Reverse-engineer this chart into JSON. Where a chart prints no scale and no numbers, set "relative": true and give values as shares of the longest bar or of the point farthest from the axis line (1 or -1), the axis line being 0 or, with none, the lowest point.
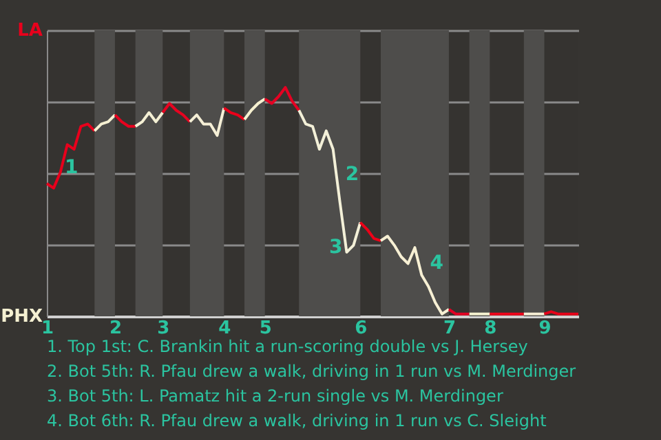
{
  "chart_data": {
    "type": "line",
    "relative": true,
    "grid": "y",
    "legend": false,
    "marker": "none",
    "line_style": "solid",
    "categories": [
      "1",
      null,
      null,
      null,
      null,
      null,
      null,
      null,
      null,
      null,
      "2",
      null,
      null,
      null,
      null,
      null,
      null,
      "3",
      null,
      null,
      null,
      null,
      null,
      null,
      null,
      null,
      "4",
      null,
      null,
      null,
      null,
      null,
      "5",
      null,
      null,
      null,
      null,
      null,
      null,
      null,
      null,
      null,
      null,
      null,
      null,
      null,
      "6",
      null,
      null,
      null,
      null,
      null,
      null,
      null,
      null,
      null,
      null,
      null,
      null,
      "7",
      null,
      null,
      null,
      null,
      null,
      "8",
      null,
      null,
      null,
      null,
      null,
      null,
      null,
      "9",
      null,
      null,
      null,
      null,
      null
    ],
    "series": [
      {
        "color": "#e8001c",
        "values": [
          0.58,
          0.56,
          0.63,
          0.75,
          0.73,
          0.83,
          0.84,
          0.81,
          null,
          null,
          null,
          null,
          null,
          null,
          null,
          null,
          null,
          null,
          null,
          null,
          null,
          null,
          null,
          null,
          null,
          null,
          null,
          null,
          null,
          null,
          null,
          null,
          null,
          null,
          null,
          null,
          null,
          null,
          null,
          null,
          null,
          null,
          null,
          null,
          null,
          null,
          null,
          null,
          null,
          null,
          null,
          null,
          null,
          null,
          null,
          null,
          null,
          null,
          null,
          null,
          null,
          null,
          null,
          null,
          null,
          null,
          null,
          null,
          null,
          null,
          null,
          null,
          null,
          null,
          null,
          null,
          null,
          null,
          null
        ]
      },
      {
        "color": "#f5f0d2",
        "values": [
          null,
          null,
          null,
          null,
          null,
          null,
          null,
          0.81,
          0.84,
          0.85,
          0.88,
          null,
          null,
          null,
          null,
          null,
          null,
          null,
          null,
          null,
          null,
          null,
          null,
          null,
          null,
          null,
          null,
          null,
          null,
          null,
          null,
          null,
          null,
          null,
          null,
          null,
          null,
          null,
          null,
          null,
          null,
          null,
          null,
          null,
          null,
          null,
          null,
          null,
          null,
          null,
          null,
          null,
          null,
          null,
          null,
          null,
          null,
          null,
          null,
          null,
          null,
          null,
          null,
          null,
          null,
          null,
          null,
          null,
          null,
          null,
          null,
          null,
          null,
          null,
          null,
          null,
          null,
          null,
          null
        ]
      },
      {
        "color": "#e8021e",
        "values": [
          null,
          null,
          null,
          null,
          null,
          null,
          null,
          null,
          null,
          null,
          0.88,
          0.85,
          0.83,
          0.83,
          null,
          null,
          null,
          null,
          null,
          null,
          null,
          null,
          null,
          null,
          null,
          null,
          null,
          null,
          null,
          null,
          null,
          null,
          null,
          null,
          null,
          null,
          null,
          null,
          null,
          null,
          null,
          null,
          null,
          null,
          null,
          null,
          null,
          null,
          null,
          null,
          null,
          null,
          null,
          null,
          null,
          null,
          null,
          null,
          null,
          null,
          null,
          null,
          null,
          null,
          null,
          null,
          null,
          null,
          null,
          null,
          null,
          null,
          null,
          null,
          null,
          null,
          null,
          null,
          null
        ]
      },
      {
        "color": "#f4f0d4",
        "values": [
          null,
          null,
          null,
          null,
          null,
          null,
          null,
          null,
          null,
          null,
          null,
          null,
          null,
          0.83,
          0.85,
          0.89,
          0.85,
          0.89,
          null,
          null,
          null,
          null,
          null,
          null,
          null,
          null,
          null,
          null,
          null,
          null,
          null,
          null,
          null,
          null,
          null,
          null,
          null,
          null,
          null,
          null,
          null,
          null,
          null,
          null,
          null,
          null,
          null,
          null,
          null,
          null,
          null,
          null,
          null,
          null,
          null,
          null,
          null,
          null,
          null,
          null,
          null,
          null,
          null,
          null,
          null,
          null,
          null,
          null,
          null,
          null,
          null,
          null,
          null,
          null,
          null,
          null,
          null,
          null,
          null
        ]
      },
      {
        "color": "#e60420",
        "values": [
          null,
          null,
          null,
          null,
          null,
          null,
          null,
          null,
          null,
          null,
          null,
          null,
          null,
          null,
          null,
          null,
          null,
          0.89,
          0.93,
          0.9,
          0.88,
          0.85,
          null,
          null,
          null,
          null,
          null,
          null,
          null,
          null,
          null,
          null,
          null,
          null,
          null,
          null,
          null,
          null,
          null,
          null,
          null,
          null,
          null,
          null,
          null,
          null,
          null,
          null,
          null,
          null,
          null,
          null,
          null,
          null,
          null,
          null,
          null,
          null,
          null,
          null,
          null,
          null,
          null,
          null,
          null,
          null,
          null,
          null,
          null,
          null,
          null,
          null,
          null,
          null,
          null,
          null,
          null,
          null,
          null
        ]
      },
      {
        "color": "#f5efd6",
        "values": [
          null,
          null,
          null,
          null,
          null,
          null,
          null,
          null,
          null,
          null,
          null,
          null,
          null,
          null,
          null,
          null,
          null,
          null,
          null,
          null,
          null,
          0.85,
          0.88,
          0.84,
          0.84,
          0.79,
          0.91,
          null,
          null,
          null,
          null,
          null,
          null,
          null,
          null,
          null,
          null,
          null,
          null,
          null,
          null,
          null,
          null,
          null,
          null,
          null,
          null,
          null,
          null,
          null,
          null,
          null,
          null,
          null,
          null,
          null,
          null,
          null,
          null,
          null,
          null,
          null,
          null,
          null,
          null,
          null,
          null,
          null,
          null,
          null,
          null,
          null,
          null,
          null,
          null,
          null,
          null,
          null,
          null
        ]
      },
      {
        "color": "#ea001a",
        "values": [
          null,
          null,
          null,
          null,
          null,
          null,
          null,
          null,
          null,
          null,
          null,
          null,
          null,
          null,
          null,
          null,
          null,
          null,
          null,
          null,
          null,
          null,
          null,
          null,
          null,
          null,
          0.91,
          0.89,
          0.88,
          0.86,
          null,
          null,
          null,
          null,
          null,
          null,
          null,
          null,
          null,
          null,
          null,
          null,
          null,
          null,
          null,
          null,
          null,
          null,
          null,
          null,
          null,
          null,
          null,
          null,
          null,
          null,
          null,
          null,
          null,
          null,
          null,
          null,
          null,
          null,
          null,
          null,
          null,
          null,
          null,
          null,
          null,
          null,
          null,
          null,
          null,
          null,
          null,
          null,
          null
        ]
      },
      {
        "color": "#f6f1d0",
        "values": [
          null,
          null,
          null,
          null,
          null,
          null,
          null,
          null,
          null,
          null,
          null,
          null,
          null,
          null,
          null,
          null,
          null,
          null,
          null,
          null,
          null,
          null,
          null,
          null,
          null,
          null,
          null,
          null,
          null,
          0.86,
          0.9,
          0.93,
          0.95,
          null,
          null,
          null,
          null,
          null,
          null,
          null,
          null,
          null,
          null,
          null,
          null,
          null,
          null,
          null,
          null,
          null,
          null,
          null,
          null,
          null,
          null,
          null,
          null,
          null,
          null,
          null,
          null,
          null,
          null,
          null,
          null,
          null,
          null,
          null,
          null,
          null,
          null,
          null,
          null,
          null,
          null,
          null,
          null,
          null,
          null
        ]
      },
      {
        "color": "#e40222",
        "values": [
          null,
          null,
          null,
          null,
          null,
          null,
          null,
          null,
          null,
          null,
          null,
          null,
          null,
          null,
          null,
          null,
          null,
          null,
          null,
          null,
          null,
          null,
          null,
          null,
          null,
          null,
          null,
          null,
          null,
          null,
          null,
          null,
          0.95,
          0.93,
          0.96,
          1,
          0.94,
          0.9,
          null,
          null,
          null,
          null,
          null,
          null,
          null,
          null,
          null,
          null,
          null,
          null,
          null,
          null,
          null,
          null,
          null,
          null,
          null,
          null,
          null,
          null,
          null,
          null,
          null,
          null,
          null,
          null,
          null,
          null,
          null,
          null,
          null,
          null,
          null,
          null,
          null,
          null,
          null,
          null,
          null
        ]
      },
      {
        "color": "#f3f0d8",
        "values": [
          null,
          null,
          null,
          null,
          null,
          null,
          null,
          null,
          null,
          null,
          null,
          null,
          null,
          null,
          null,
          null,
          null,
          null,
          null,
          null,
          null,
          null,
          null,
          null,
          null,
          null,
          null,
          null,
          null,
          null,
          null,
          null,
          null,
          null,
          null,
          null,
          null,
          0.9,
          0.84,
          0.83,
          0.73,
          0.81,
          0.73,
          0.5,
          0.28,
          0.31,
          0.41,
          null,
          null,
          null,
          null,
          null,
          null,
          null,
          null,
          null,
          null,
          null,
          null,
          null,
          null,
          null,
          null,
          null,
          null,
          null,
          null,
          null,
          null,
          null,
          null,
          null,
          null,
          null,
          null,
          null,
          null,
          null,
          null
        ]
      },
      {
        "color": "#ec0218",
        "values": [
          null,
          null,
          null,
          null,
          null,
          null,
          null,
          null,
          null,
          null,
          null,
          null,
          null,
          null,
          null,
          null,
          null,
          null,
          null,
          null,
          null,
          null,
          null,
          null,
          null,
          null,
          null,
          null,
          null,
          null,
          null,
          null,
          null,
          null,
          null,
          null,
          null,
          null,
          null,
          null,
          null,
          null,
          null,
          null,
          null,
          null,
          0.41,
          0.38,
          0.34,
          0.33,
          null,
          null,
          null,
          null,
          null,
          null,
          null,
          null,
          null,
          null,
          null,
          null,
          null,
          null,
          null,
          null,
          null,
          null,
          null,
          null,
          null,
          null,
          null,
          null,
          null,
          null,
          null,
          null,
          null
        ]
      },
      {
        "color": "#f7f0d4",
        "values": [
          null,
          null,
          null,
          null,
          null,
          null,
          null,
          null,
          null,
          null,
          null,
          null,
          null,
          null,
          null,
          null,
          null,
          null,
          null,
          null,
          null,
          null,
          null,
          null,
          null,
          null,
          null,
          null,
          null,
          null,
          null,
          null,
          null,
          null,
          null,
          null,
          null,
          null,
          null,
          null,
          null,
          null,
          null,
          null,
          null,
          null,
          null,
          null,
          null,
          0.33,
          0.35,
          0.31,
          0.26,
          0.23,
          0.3,
          0.18,
          0.13,
          0.06,
          0.01,
          0.03,
          null,
          null,
          null,
          null,
          null,
          null,
          null,
          null,
          null,
          null,
          null,
          null,
          null,
          null,
          null,
          null,
          null,
          null,
          null
        ]
      },
      {
        "color": "#e20024",
        "values": [
          null,
          null,
          null,
          null,
          null,
          null,
          null,
          null,
          null,
          null,
          null,
          null,
          null,
          null,
          null,
          null,
          null,
          null,
          null,
          null,
          null,
          null,
          null,
          null,
          null,
          null,
          null,
          null,
          null,
          null,
          null,
          null,
          null,
          null,
          null,
          null,
          null,
          null,
          null,
          null,
          null,
          null,
          null,
          null,
          null,
          null,
          null,
          null,
          null,
          null,
          null,
          null,
          null,
          null,
          null,
          null,
          null,
          null,
          null,
          0.03,
          0.01,
          0.01,
          0.01,
          null,
          null,
          null,
          null,
          null,
          null,
          null,
          null,
          null,
          null,
          null,
          null,
          null,
          null,
          null,
          null
        ]
      },
      {
        "color": "#f5f2d0",
        "values": [
          null,
          null,
          null,
          null,
          null,
          null,
          null,
          null,
          null,
          null,
          null,
          null,
          null,
          null,
          null,
          null,
          null,
          null,
          null,
          null,
          null,
          null,
          null,
          null,
          null,
          null,
          null,
          null,
          null,
          null,
          null,
          null,
          null,
          null,
          null,
          null,
          null,
          null,
          null,
          null,
          null,
          null,
          null,
          null,
          null,
          null,
          null,
          null,
          null,
          null,
          null,
          null,
          null,
          null,
          null,
          null,
          null,
          null,
          null,
          null,
          null,
          null,
          0.01,
          0.01,
          0.01,
          0.01,
          null,
          null,
          null,
          null,
          null,
          null,
          null,
          null,
          null,
          null,
          null,
          null,
          null
        ]
      },
      {
        "color": "#ee041c",
        "values": [
          null,
          null,
          null,
          null,
          null,
          null,
          null,
          null,
          null,
          null,
          null,
          null,
          null,
          null,
          null,
          null,
          null,
          null,
          null,
          null,
          null,
          null,
          null,
          null,
          null,
          null,
          null,
          null,
          null,
          null,
          null,
          null,
          null,
          null,
          null,
          null,
          null,
          null,
          null,
          null,
          null,
          null,
          null,
          null,
          null,
          null,
          null,
          null,
          null,
          null,
          null,
          null,
          null,
          null,
          null,
          null,
          null,
          null,
          null,
          null,
          null,
          null,
          null,
          null,
          null,
          0.01,
          0.01,
          0.01,
          0.01,
          0.01,
          0.01,
          null,
          null,
          null,
          null,
          null,
          null,
          null,
          null
        ]
      },
      {
        "color": "#f5eed4",
        "values": [
          null,
          null,
          null,
          null,
          null,
          null,
          null,
          null,
          null,
          null,
          null,
          null,
          null,
          null,
          null,
          null,
          null,
          null,
          null,
          null,
          null,
          null,
          null,
          null,
          null,
          null,
          null,
          null,
          null,
          null,
          null,
          null,
          null,
          null,
          null,
          null,
          null,
          null,
          null,
          null,
          null,
          null,
          null,
          null,
          null,
          null,
          null,
          null,
          null,
          null,
          null,
          null,
          null,
          null,
          null,
          null,
          null,
          null,
          null,
          null,
          null,
          null,
          null,
          null,
          null,
          null,
          null,
          null,
          null,
          null,
          0.01,
          0.01,
          0.01,
          0.01,
          null,
          null,
          null,
          null,
          null
        ]
      },
      {
        "color": "#e6021a",
        "values": [
          null,
          null,
          null,
          null,
          null,
          null,
          null,
          null,
          null,
          null,
          null,
          null,
          null,
          null,
          null,
          null,
          null,
          null,
          null,
          null,
          null,
          null,
          null,
          null,
          null,
          null,
          null,
          null,
          null,
          null,
          null,
          null,
          null,
          null,
          null,
          null,
          null,
          null,
          null,
          null,
          null,
          null,
          null,
          null,
          null,
          null,
          null,
          null,
          null,
          null,
          null,
          null,
          null,
          null,
          null,
          null,
          null,
          null,
          null,
          null,
          null,
          null,
          null,
          null,
          null,
          null,
          null,
          null,
          null,
          null,
          null,
          null,
          null,
          0.01,
          0.02,
          0.01,
          0.01,
          0.01,
          0.01
        ]
      }
    ],
    "annotations": [
      "LA",
      "PHX",
      "1",
      "2",
      "3",
      "4",
      "1. Top 1st: C. Brankin hit a run-scoring double vs J. Hersey",
      "2. Bot 5th: R. Pfau drew a walk, driving in 1 run vs M. Merdinger",
      "3. Bot 5th: L. Pamatz hit a 2-run single vs M. Merdinger",
      "4. Bot 6th: R. Pfau drew a walk, driving in 1 run vs C. Sleight"
    ]
  }
}
